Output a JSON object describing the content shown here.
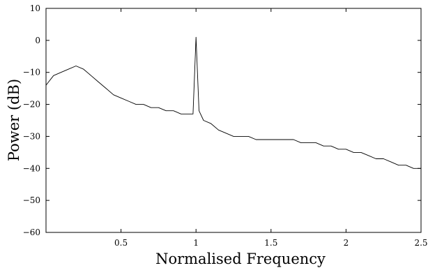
{
  "chart_data": {
    "type": "line",
    "title": "",
    "xlabel": "Normalised Frequency",
    "ylabel": "Power (dB)",
    "xlim": [
      0,
      2.5
    ],
    "ylim": [
      -60,
      10
    ],
    "grid": false,
    "x_ticks": [
      0.5,
      1,
      1.5,
      2,
      2.5
    ],
    "x_tick_labels": [
      "0.5",
      "1",
      "1.5",
      "2",
      "2.5"
    ],
    "y_ticks": [
      10,
      0,
      -10,
      -20,
      -30,
      -40,
      -50,
      -60
    ],
    "y_tick_labels": [
      "10",
      "0",
      "−10",
      "−20",
      "−30",
      "−40",
      "−50",
      "−60"
    ],
    "series": [
      {
        "x": [
          0,
          0.05,
          0.1,
          0.15,
          0.2,
          0.25,
          0.3,
          0.35,
          0.4,
          0.45,
          0.5,
          0.55,
          0.6,
          0.65,
          0.7,
          0.75,
          0.8,
          0.85,
          0.9,
          0.95,
          0.98,
          1.0,
          1.02,
          1.05,
          1.1,
          1.15,
          1.2,
          1.25,
          1.3,
          1.35,
          1.4,
          1.45,
          1.5,
          1.55,
          1.6,
          1.65,
          1.7,
          1.75,
          1.8,
          1.85,
          1.9,
          1.95,
          2.0,
          2.05,
          2.1,
          2.15,
          2.2,
          2.25,
          2.3,
          2.35,
          2.4,
          2.45,
          2.5
        ],
        "values": [
          -14,
          -11,
          -10,
          -9,
          -8,
          -9,
          -11,
          -13,
          -15,
          -17,
          -18,
          -19,
          -20,
          -20,
          -21,
          -21,
          -22,
          -22,
          -23,
          -23,
          -23,
          1,
          -22,
          -25,
          -26,
          -28,
          -29,
          -30,
          -30,
          -30,
          -31,
          -31,
          -31,
          -31,
          -31,
          -31,
          -32,
          -32,
          -32,
          -33,
          -33,
          -34,
          -34,
          -35,
          -35,
          -36,
          -37,
          -37,
          -38,
          -39,
          -39,
          -40,
          -40
        ]
      }
    ]
  }
}
